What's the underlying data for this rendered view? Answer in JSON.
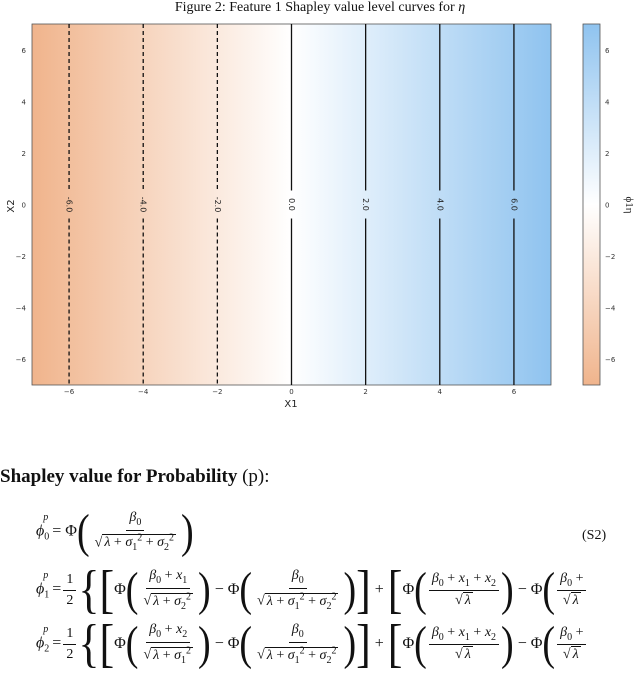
{
  "caption": {
    "prefix": "Figure 2: Feature 1 Shapley value level curves for ",
    "symbol": "η"
  },
  "chart_data": {
    "type": "contour",
    "xlabel": "X1",
    "ylabel": "X2",
    "xlim": [
      -7,
      7
    ],
    "ylim": [
      -7,
      7
    ],
    "xticks": [
      "−6",
      "−4",
      "−2",
      "0",
      "2",
      "4",
      "6"
    ],
    "yticks": [
      "6",
      "4",
      "2",
      "0",
      "−2",
      "−4",
      "−6"
    ],
    "level_lines": [
      {
        "x": -6,
        "label": "-6.0",
        "style": "dashed"
      },
      {
        "x": -4,
        "label": "-4.0",
        "style": "dashed"
      },
      {
        "x": -2,
        "label": "-2.0",
        "style": "dashed"
      },
      {
        "x": 0,
        "label": "0.0",
        "style": "solid"
      },
      {
        "x": 2,
        "label": "2.0",
        "style": "solid"
      },
      {
        "x": 4,
        "label": "4.0",
        "style": "solid"
      },
      {
        "x": 6,
        "label": "6.0",
        "style": "solid"
      }
    ],
    "colorbar": {
      "label": "ϕ1η",
      "range": [
        -7,
        7
      ],
      "ticks": [
        "6",
        "4",
        "2",
        "0",
        "−2",
        "−4",
        "−6"
      ],
      "low_color": "#f0b48c",
      "mid_color": "#ffffff",
      "high_color": "#8fc3ef"
    },
    "grid": false
  },
  "section": {
    "title": "Shapley value for Probability",
    "symbol": "(p):"
  },
  "equations": {
    "eq0_label": "(S2)"
  }
}
